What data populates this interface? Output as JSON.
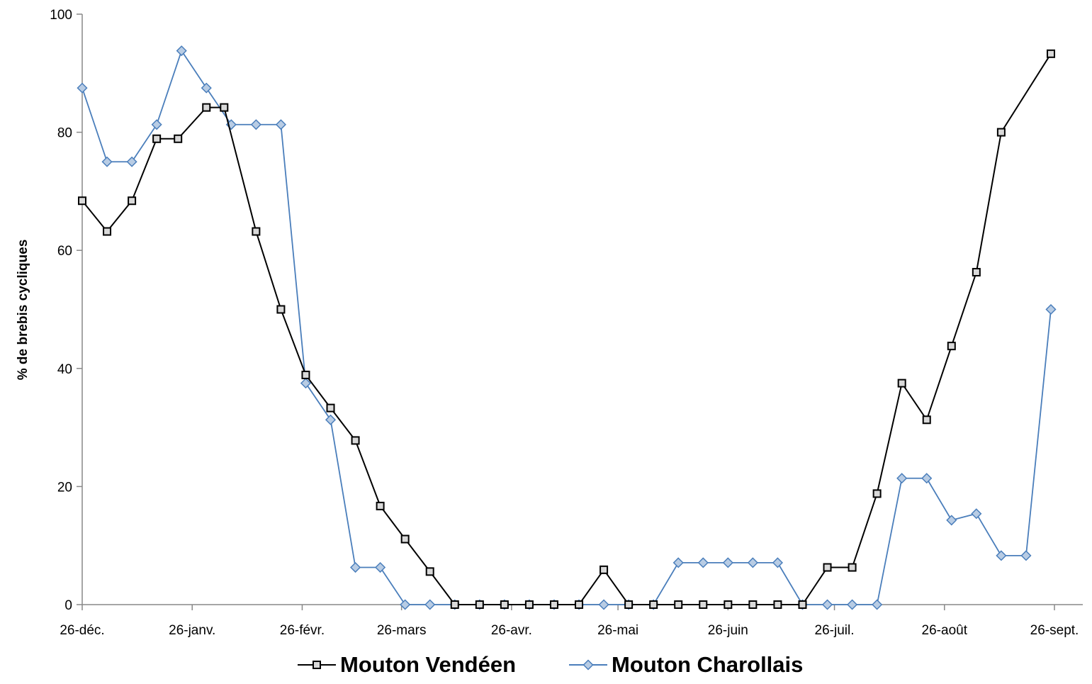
{
  "chart_data": {
    "type": "line",
    "title": "",
    "xlabel": "",
    "ylabel": "% de brebis cycliques",
    "ylim": [
      0,
      100
    ],
    "yticks": [
      0,
      20,
      40,
      60,
      80,
      100
    ],
    "xlim": [
      "2008-12-26",
      "2009-09-26"
    ],
    "xticks": [
      {
        "date": "2008-12-26",
        "label": "26-déc."
      },
      {
        "date": "2009-01-26",
        "label": "26-janv."
      },
      {
        "date": "2009-02-26",
        "label": "26-févr."
      },
      {
        "date": "2009-03-26",
        "label": "26-mars"
      },
      {
        "date": "2009-04-26",
        "label": "26-avr."
      },
      {
        "date": "2009-05-26",
        "label": "26-mai"
      },
      {
        "date": "2009-06-26",
        "label": "26-juin"
      },
      {
        "date": "2009-07-26",
        "label": "26-juil."
      },
      {
        "date": "2009-08-26",
        "label": "26-août"
      },
      {
        "date": "2009-09-26",
        "label": "26-sept."
      }
    ],
    "grid": false,
    "legend_position": "bottom",
    "series": [
      {
        "name": "Mouton Vendéen",
        "color": "#000000",
        "marker": "square",
        "points": [
          [
            "2008-12-26",
            68.4
          ],
          [
            "2009-01-02",
            63.2
          ],
          [
            "2009-01-09",
            68.4
          ],
          [
            "2009-01-16",
            78.9
          ],
          [
            "2009-01-22",
            78.9
          ],
          [
            "2009-01-30",
            84.2
          ],
          [
            "2009-02-04",
            84.2
          ],
          [
            "2009-02-13",
            63.2
          ],
          [
            "2009-02-20",
            50.0
          ],
          [
            "2009-02-27",
            38.9
          ],
          [
            "2009-03-06",
            33.3
          ],
          [
            "2009-03-13",
            27.8
          ],
          [
            "2009-03-20",
            16.7
          ],
          [
            "2009-03-27",
            11.1
          ],
          [
            "2009-04-03",
            5.6
          ],
          [
            "2009-04-10",
            0
          ],
          [
            "2009-04-17",
            0
          ],
          [
            "2009-04-24",
            0
          ],
          [
            "2009-05-01",
            0
          ],
          [
            "2009-05-08",
            0
          ],
          [
            "2009-05-15",
            0
          ],
          [
            "2009-05-22",
            5.9
          ],
          [
            "2009-05-29",
            0
          ],
          [
            "2009-06-05",
            0
          ],
          [
            "2009-06-12",
            0
          ],
          [
            "2009-06-19",
            0
          ],
          [
            "2009-06-26",
            0
          ],
          [
            "2009-07-03",
            0
          ],
          [
            "2009-07-10",
            0
          ],
          [
            "2009-07-17",
            0
          ],
          [
            "2009-07-24",
            6.3
          ],
          [
            "2009-07-31",
            6.3
          ],
          [
            "2009-08-07",
            18.8
          ],
          [
            "2009-08-14",
            37.5
          ],
          [
            "2009-08-21",
            31.3
          ],
          [
            "2009-08-28",
            43.8
          ],
          [
            "2009-09-04",
            56.3
          ],
          [
            "2009-09-11",
            80.0
          ],
          [
            "2009-09-25",
            93.3
          ]
        ]
      },
      {
        "name": "Mouton Charollais",
        "color": "#4a7ebb",
        "marker": "diamond",
        "points": [
          [
            "2008-12-26",
            87.5
          ],
          [
            "2009-01-02",
            75.0
          ],
          [
            "2009-01-09",
            75.0
          ],
          [
            "2009-01-16",
            81.3
          ],
          [
            "2009-01-23",
            93.8
          ],
          [
            "2009-01-30",
            87.5
          ],
          [
            "2009-02-06",
            81.3
          ],
          [
            "2009-02-13",
            81.3
          ],
          [
            "2009-02-20",
            81.3
          ],
          [
            "2009-02-27",
            37.5
          ],
          [
            "2009-03-06",
            31.3
          ],
          [
            "2009-03-13",
            6.3
          ],
          [
            "2009-03-20",
            6.3
          ],
          [
            "2009-03-27",
            0
          ],
          [
            "2009-04-03",
            0
          ],
          [
            "2009-04-10",
            0
          ],
          [
            "2009-04-17",
            0
          ],
          [
            "2009-04-24",
            0
          ],
          [
            "2009-05-01",
            0
          ],
          [
            "2009-05-08",
            0
          ],
          [
            "2009-05-15",
            0
          ],
          [
            "2009-05-22",
            0
          ],
          [
            "2009-05-29",
            0
          ],
          [
            "2009-06-05",
            0
          ],
          [
            "2009-06-12",
            7.1
          ],
          [
            "2009-06-19",
            7.1
          ],
          [
            "2009-06-26",
            7.1
          ],
          [
            "2009-07-03",
            7.1
          ],
          [
            "2009-07-10",
            7.1
          ],
          [
            "2009-07-17",
            0
          ],
          [
            "2009-07-24",
            0
          ],
          [
            "2009-07-31",
            0
          ],
          [
            "2009-08-07",
            0
          ],
          [
            "2009-08-14",
            21.4
          ],
          [
            "2009-08-21",
            21.4
          ],
          [
            "2009-08-28",
            14.3
          ],
          [
            "2009-09-04",
            15.4
          ],
          [
            "2009-09-11",
            8.3
          ],
          [
            "2009-09-18",
            8.3
          ],
          [
            "2009-09-25",
            50.0
          ]
        ]
      }
    ]
  }
}
